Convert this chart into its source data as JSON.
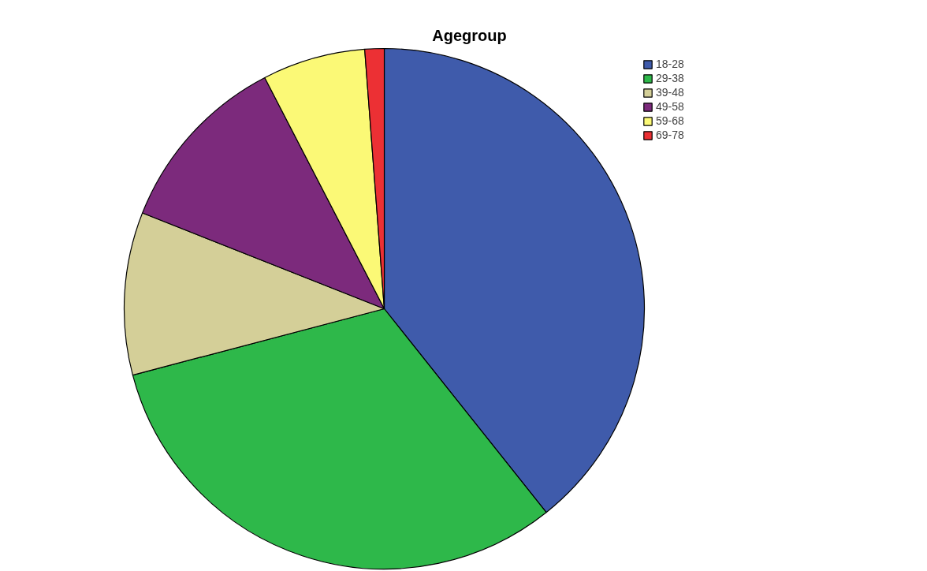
{
  "chart_data": {
    "type": "pie",
    "title": "Agegroup",
    "categories": [
      "18-28",
      "29-38",
      "39-48",
      "49-58",
      "59-68",
      "69-78"
    ],
    "values": [
      39.3,
      31.6,
      10.1,
      11.4,
      6.4,
      1.2
    ],
    "colors": [
      "#3f5bab",
      "#2eb84a",
      "#d4cf98",
      "#7c2a7c",
      "#fbf976",
      "#ec3034"
    ],
    "legend": "top right"
  }
}
